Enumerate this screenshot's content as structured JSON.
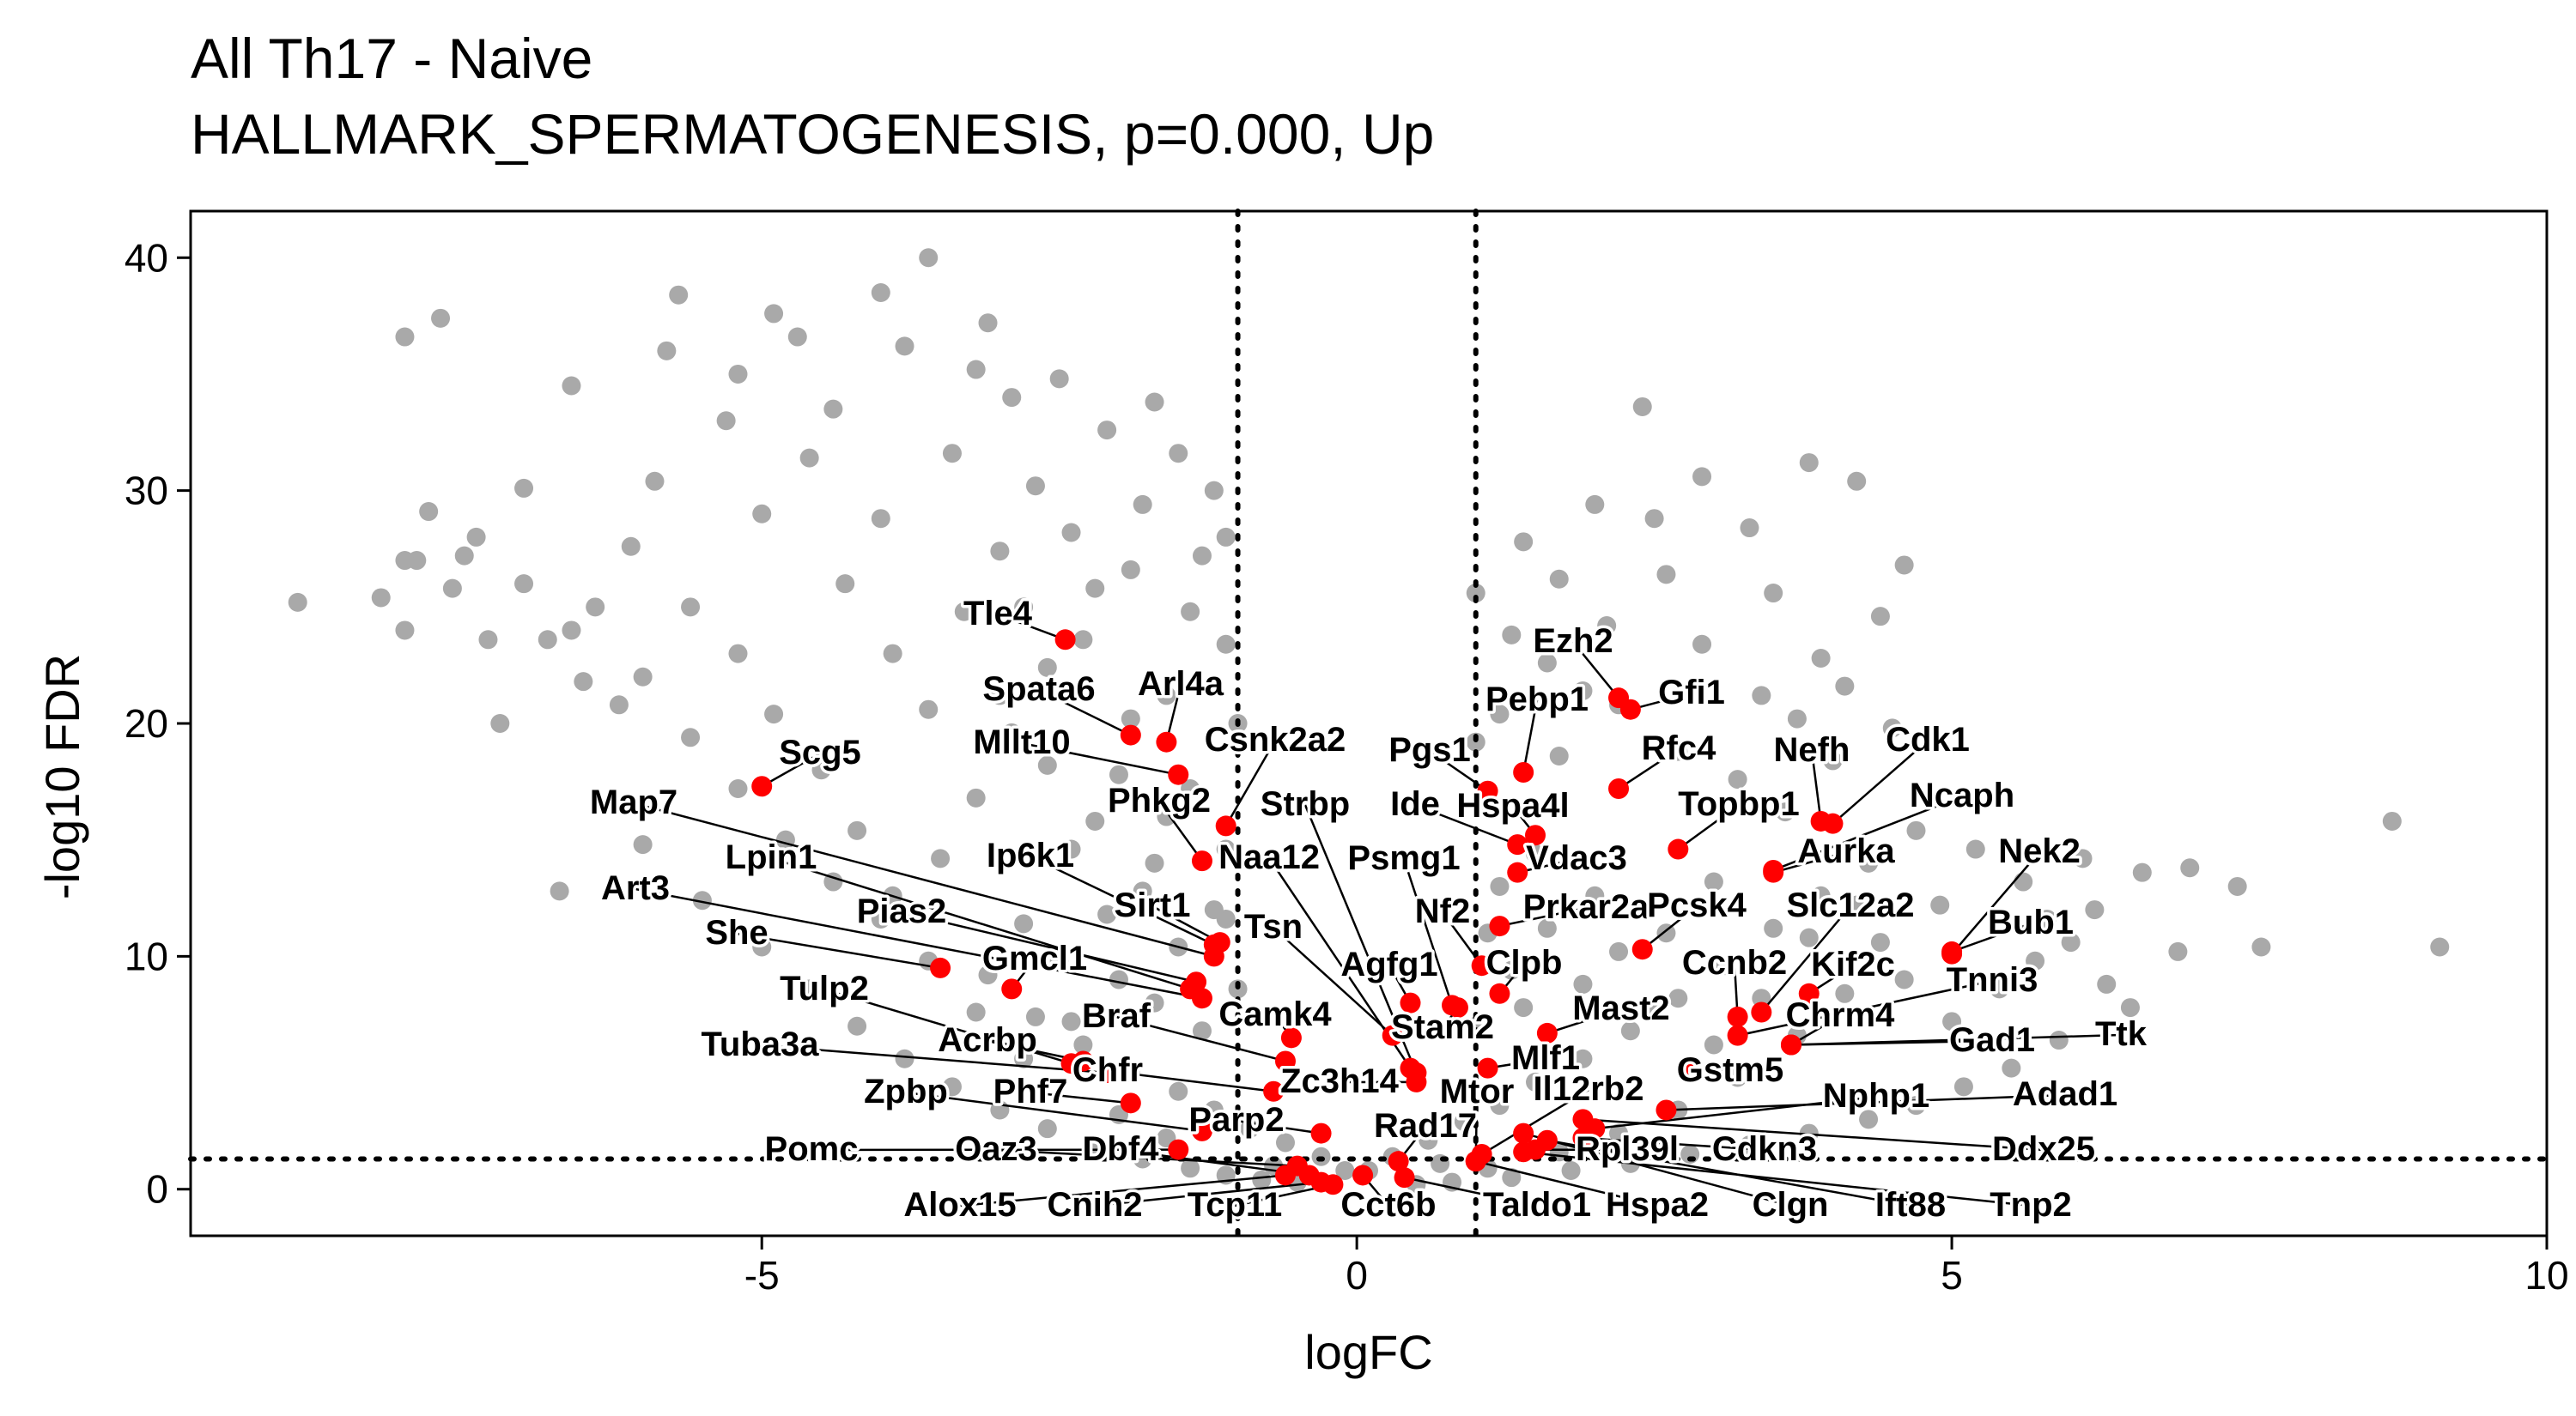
{
  "chart_data": {
    "type": "scatter",
    "title_lines": [
      "All Th17 - Naive",
      "HALLMARK_SPERMATOGENESIS, p=0.000, Up"
    ],
    "xlabel": "logFC",
    "ylabel": "-log10 FDR",
    "xlim": [
      -9.8,
      10
    ],
    "ylim": [
      -2,
      42
    ],
    "x_ticks": [
      -5,
      0,
      5,
      10
    ],
    "y_ticks": [
      0,
      10,
      20,
      30,
      40
    ],
    "grid": false,
    "background_color": "#a9a9a9",
    "highlight_color": "#ff0000",
    "thresholds": {
      "logFC": [
        -1,
        1
      ],
      "neg_log10_fdr": 1.3
    },
    "background_points": [
      [
        -8.9,
        25.2
      ],
      [
        -8.0,
        36.6
      ],
      [
        -7.7,
        37.4
      ],
      [
        -7.9,
        27.0
      ],
      [
        -7.4,
        28.0
      ],
      [
        -7.0,
        30.1
      ],
      [
        -6.6,
        34.5
      ],
      [
        -6.7,
        12.8
      ],
      [
        -6.4,
        25.0
      ],
      [
        -6.0,
        22.0
      ],
      [
        -5.9,
        30.4
      ],
      [
        -5.7,
        38.4
      ],
      [
        -5.2,
        35.0
      ],
      [
        -5.0,
        29.0
      ],
      [
        -4.7,
        36.6
      ],
      [
        -4.4,
        33.5
      ],
      [
        -4.0,
        38.5
      ],
      [
        -3.6,
        40.0
      ],
      [
        -3.2,
        35.2
      ],
      [
        -2.9,
        34.0
      ],
      [
        -7.8,
        29.1
      ],
      [
        -7.5,
        27.2
      ],
      [
        -8.0,
        27.0
      ],
      [
        -8.2,
        25.4
      ],
      [
        -6.8,
        23.6
      ],
      [
        -6.5,
        21.8
      ],
      [
        -6.1,
        27.6
      ],
      [
        -5.6,
        25.0
      ],
      [
        -5.2,
        23.0
      ],
      [
        -4.9,
        20.4
      ],
      [
        -4.5,
        18.0
      ],
      [
        -4.2,
        15.4
      ],
      [
        -3.9,
        12.6
      ],
      [
        -3.5,
        14.2
      ],
      [
        -3.2,
        16.8
      ],
      [
        -2.9,
        19.6
      ],
      [
        -2.6,
        22.4
      ],
      [
        -2.2,
        25.8
      ],
      [
        -1.8,
        29.4
      ],
      [
        -1.5,
        31.6
      ],
      [
        -1.3,
        27.2
      ],
      [
        -1.1,
        23.4
      ],
      [
        -1.6,
        21.2
      ],
      [
        -2.0,
        17.8
      ],
      [
        -2.4,
        14.6
      ],
      [
        -2.8,
        11.4
      ],
      [
        -3.1,
        9.2
      ],
      [
        -2.7,
        7.4
      ],
      [
        -2.3,
        6.2
      ],
      [
        -1.9,
        5.0
      ],
      [
        -1.5,
        4.2
      ],
      [
        -1.2,
        3.4
      ],
      [
        -0.9,
        2.6
      ],
      [
        -0.6,
        2.0
      ],
      [
        -0.3,
        1.4
      ],
      [
        -0.1,
        0.8
      ],
      [
        0.1,
        0.8
      ],
      [
        0.3,
        1.4
      ],
      [
        0.6,
        2.1
      ],
      [
        0.9,
        2.9
      ],
      [
        1.2,
        3.6
      ],
      [
        1.5,
        4.6
      ],
      [
        1.9,
        5.6
      ],
      [
        2.3,
        6.8
      ],
      [
        2.7,
        8.2
      ],
      [
        3.1,
        9.6
      ],
      [
        3.5,
        11.2
      ],
      [
        3.9,
        12.6
      ],
      [
        4.3,
        14.0
      ],
      [
        4.7,
        15.4
      ],
      [
        5.2,
        14.6
      ],
      [
        5.6,
        13.2
      ],
      [
        6.1,
        14.2
      ],
      [
        6.6,
        13.6
      ],
      [
        7.0,
        13.8
      ],
      [
        7.4,
        13.0
      ],
      [
        6.9,
        10.2
      ],
      [
        7.6,
        10.4
      ],
      [
        8.7,
        15.8
      ],
      [
        9.1,
        10.4
      ],
      [
        5.7,
        9.8
      ],
      [
        6.3,
        8.8
      ],
      [
        6.5,
        7.8
      ],
      [
        5.9,
        6.4
      ],
      [
        5.5,
        5.2
      ],
      [
        5.1,
        4.4
      ],
      [
        4.7,
        3.6
      ],
      [
        4.3,
        3.0
      ],
      [
        3.8,
        2.4
      ],
      [
        3.3,
        1.9
      ],
      [
        2.8,
        1.5
      ],
      [
        2.3,
        1.1
      ],
      [
        1.8,
        0.8
      ],
      [
        1.3,
        0.5
      ],
      [
        1.0,
        25.6
      ],
      [
        1.4,
        27.8
      ],
      [
        1.7,
        26.2
      ],
      [
        2.0,
        29.4
      ],
      [
        2.5,
        28.8
      ],
      [
        2.9,
        30.6
      ],
      [
        3.3,
        28.4
      ],
      [
        3.8,
        31.2
      ],
      [
        4.2,
        30.4
      ],
      [
        4.6,
        26.8
      ],
      [
        4.4,
        24.6
      ],
      [
        3.9,
        22.8
      ],
      [
        3.4,
        21.2
      ],
      [
        2.9,
        23.4
      ],
      [
        2.4,
        33.6
      ],
      [
        2.1,
        24.2
      ],
      [
        1.6,
        22.6
      ],
      [
        1.2,
        20.4
      ],
      [
        1.1,
        16.4
      ],
      [
        1.5,
        14.4
      ],
      [
        2.0,
        12.6
      ],
      [
        2.6,
        11.0
      ],
      [
        3.0,
        13.2
      ],
      [
        3.6,
        16.2
      ],
      [
        4.0,
        18.4
      ],
      [
        4.5,
        19.8
      ],
      [
        5.1,
        16.8
      ],
      [
        4.9,
        12.2
      ],
      [
        4.4,
        10.6
      ],
      [
        4.1,
        8.4
      ],
      [
        3.7,
        6.6
      ],
      [
        3.2,
        4.8
      ],
      [
        2.7,
        3.4
      ],
      [
        2.2,
        2.4
      ],
      [
        1.7,
        1.6
      ],
      [
        1.1,
        0.9
      ],
      [
        0.8,
        0.3
      ],
      [
        0.5,
        0.2
      ],
      [
        -0.5,
        0.3
      ],
      [
        -0.8,
        0.4
      ],
      [
        -1.1,
        0.6
      ],
      [
        -1.4,
        0.9
      ],
      [
        -1.8,
        1.3
      ],
      [
        -2.2,
        1.9
      ],
      [
        -2.6,
        2.6
      ],
      [
        -3.0,
        3.4
      ],
      [
        -3.4,
        4.4
      ],
      [
        -3.8,
        5.6
      ],
      [
        -4.2,
        7.0
      ],
      [
        -4.6,
        8.6
      ],
      [
        -5.0,
        10.4
      ],
      [
        -5.5,
        12.4
      ],
      [
        -6.0,
        14.8
      ],
      [
        -4.3,
        26.0
      ],
      [
        -3.9,
        23.0
      ],
      [
        -3.6,
        20.6
      ],
      [
        -3.3,
        24.8
      ],
      [
        -3.0,
        27.4
      ],
      [
        -2.7,
        30.2
      ],
      [
        -2.4,
        28.2
      ],
      [
        -2.1,
        32.6
      ],
      [
        -1.7,
        33.8
      ],
      [
        -3.4,
        31.6
      ],
      [
        -4.0,
        28.8
      ],
      [
        -4.6,
        31.4
      ],
      [
        -5.3,
        33.0
      ],
      [
        -5.8,
        36.0
      ],
      [
        -4.9,
        37.6
      ],
      [
        -3.8,
        36.2
      ],
      [
        -3.1,
        37.2
      ],
      [
        -2.5,
        34.8
      ],
      [
        -1.9,
        26.6
      ],
      [
        -1.2,
        30.0
      ],
      [
        -1.0,
        20.0
      ],
      [
        -1.4,
        17.2
      ],
      [
        -1.7,
        14.0
      ],
      [
        -2.1,
        11.8
      ],
      [
        -2.5,
        9.8
      ],
      [
        -1.1,
        14.6
      ],
      [
        -1.0,
        8.6
      ],
      [
        -1.3,
        6.8
      ],
      [
        -1.7,
        8.0
      ],
      [
        -2.0,
        3.2
      ],
      [
        -1.6,
        2.2
      ],
      [
        -0.7,
        1.0
      ],
      [
        0.7,
        1.1
      ],
      [
        1.0,
        7.0
      ],
      [
        1.3,
        9.4
      ],
      [
        1.6,
        11.2
      ],
      [
        1.9,
        8.8
      ],
      [
        2.2,
        10.2
      ],
      [
        2.5,
        7.6
      ],
      [
        3.0,
        6.2
      ],
      [
        3.4,
        8.2
      ],
      [
        3.8,
        10.8
      ],
      [
        4.2,
        12.2
      ],
      [
        4.6,
        9.0
      ],
      [
        5.0,
        7.2
      ],
      [
        5.4,
        8.6
      ],
      [
        5.8,
        11.6
      ],
      [
        6.2,
        12.0
      ],
      [
        6.0,
        10.6
      ],
      [
        1.2,
        13.0
      ],
      [
        1.7,
        18.6
      ],
      [
        2.2,
        20.8
      ],
      [
        2.7,
        18.8
      ],
      [
        3.2,
        17.6
      ],
      [
        3.7,
        20.2
      ],
      [
        4.1,
        21.6
      ],
      [
        3.5,
        25.6
      ],
      [
        2.6,
        26.4
      ],
      [
        1.9,
        21.4
      ],
      [
        1.3,
        23.8
      ],
      [
        1.0,
        19.2
      ],
      [
        1.1,
        11.0
      ],
      [
        1.4,
        7.8
      ],
      [
        -1.1,
        11.6
      ],
      [
        -1.2,
        12.0
      ],
      [
        -1.5,
        10.4
      ],
      [
        -1.8,
        12.8
      ],
      [
        -2.2,
        15.8
      ],
      [
        -2.6,
        18.2
      ],
      [
        -3.0,
        21.2
      ],
      [
        -2.8,
        25.0
      ],
      [
        -2.3,
        23.6
      ],
      [
        -1.9,
        20.2
      ],
      [
        -1.4,
        24.8
      ],
      [
        -1.1,
        28.0
      ],
      [
        -1.6,
        16.0
      ],
      [
        -2.0,
        9.0
      ],
      [
        -2.4,
        7.2
      ],
      [
        -2.8,
        5.6
      ],
      [
        -3.2,
        7.6
      ],
      [
        -3.6,
        9.8
      ],
      [
        -4.0,
        11.6
      ],
      [
        -4.4,
        13.2
      ],
      [
        -4.8,
        15.0
      ],
      [
        -5.2,
        17.2
      ],
      [
        -5.6,
        19.4
      ],
      [
        -6.2,
        20.8
      ],
      [
        -6.6,
        24.0
      ],
      [
        -7.0,
        26.0
      ],
      [
        -7.3,
        23.6
      ],
      [
        -7.6,
        25.8
      ],
      [
        -8.0,
        24.0
      ],
      [
        -7.2,
        20.0
      ]
    ],
    "highlight_points": [
      {
        "label": "Tle4",
        "x": -2.45,
        "y": 23.6
      },
      {
        "label": "Spata6",
        "x": -1.9,
        "y": 19.5
      },
      {
        "label": "Arl4a",
        "x": -1.6,
        "y": 19.2
      },
      {
        "label": "Mllt10",
        "x": -1.5,
        "y": 17.8
      },
      {
        "label": "Scg5",
        "x": -5.0,
        "y": 17.3
      },
      {
        "label": "Csnk2a2",
        "x": -1.1,
        "y": 15.6
      },
      {
        "label": "Phkg2",
        "x": -1.3,
        "y": 14.1
      },
      {
        "label": "Map7",
        "x": -1.2,
        "y": 10.0
      },
      {
        "label": "Lpin1",
        "x": -1.4,
        "y": 8.6
      },
      {
        "label": "Ip6k1",
        "x": -1.2,
        "y": 10.5
      },
      {
        "label": "Art3",
        "x": -1.3,
        "y": 8.2
      },
      {
        "label": "Sirt1",
        "x": -1.15,
        "y": 10.6
      },
      {
        "label": "She",
        "x": -3.5,
        "y": 9.5
      },
      {
        "label": "Pias2",
        "x": -1.35,
        "y": 8.9
      },
      {
        "label": "Gmcl1",
        "x": -2.9,
        "y": 8.6
      },
      {
        "label": "Tulp2",
        "x": -2.4,
        "y": 5.4
      },
      {
        "label": "Acrbp",
        "x": -2.3,
        "y": 5.5
      },
      {
        "label": "Braf",
        "x": -0.6,
        "y": 5.5
      },
      {
        "label": "Camk4",
        "x": -0.55,
        "y": 6.5
      },
      {
        "label": "Tuba3a",
        "x": -2.1,
        "y": 5.0
      },
      {
        "label": "Chfr",
        "x": -0.7,
        "y": 4.2
      },
      {
        "label": "Zpbp",
        "x": -1.3,
        "y": 2.5
      },
      {
        "label": "Phf7",
        "x": -1.9,
        "y": 3.7
      },
      {
        "label": "Parp2",
        "x": -0.3,
        "y": 2.4
      },
      {
        "label": "Pomc",
        "x": -1.5,
        "y": 1.7
      },
      {
        "label": "Oaz3",
        "x": -0.5,
        "y": 1.0
      },
      {
        "label": "Dbf4",
        "x": -0.4,
        "y": 0.6
      },
      {
        "label": "Alox15",
        "x": -0.6,
        "y": 0.6
      },
      {
        "label": "Cnih2",
        "x": -0.3,
        "y": 0.3
      },
      {
        "label": "Tcp11",
        "x": -0.2,
        "y": 0.2
      },
      {
        "label": "Cct6b",
        "x": 0.05,
        "y": 0.6
      },
      {
        "label": "Taldo1",
        "x": 0.4,
        "y": 0.5
      },
      {
        "label": "Strbp",
        "x": 0.5,
        "y": 5.0
      },
      {
        "label": "Tsn",
        "x": 0.3,
        "y": 6.6
      },
      {
        "label": "Naa12",
        "x": 0.45,
        "y": 5.2
      },
      {
        "label": "Psmg1",
        "x": 0.8,
        "y": 7.9
      },
      {
        "label": "Agfg1",
        "x": 0.45,
        "y": 8.0
      },
      {
        "label": "Zc3h14",
        "x": 0.5,
        "y": 4.6
      },
      {
        "label": "Rad17",
        "x": 0.35,
        "y": 1.2
      },
      {
        "label": "Pgs1",
        "x": 1.1,
        "y": 17.1
      },
      {
        "label": "Ide",
        "x": 1.35,
        "y": 14.8
      },
      {
        "label": "Pebp1",
        "x": 1.4,
        "y": 17.9
      },
      {
        "label": "Ezh2",
        "x": 2.2,
        "y": 21.1
      },
      {
        "label": "Gfi1",
        "x": 2.3,
        "y": 20.6
      },
      {
        "label": "Rfc4",
        "x": 2.2,
        "y": 17.2
      },
      {
        "label": "Hspa4l",
        "x": 1.5,
        "y": 15.2
      },
      {
        "label": "Vdac3",
        "x": 1.35,
        "y": 13.6
      },
      {
        "label": "Topbp1",
        "x": 2.7,
        "y": 14.6
      },
      {
        "label": "Nf2",
        "x": 1.05,
        "y": 9.6
      },
      {
        "label": "Prkar2a",
        "x": 1.2,
        "y": 11.3
      },
      {
        "label": "Clpb",
        "x": 1.2,
        "y": 8.4
      },
      {
        "label": "Stam2",
        "x": 0.85,
        "y": 7.8
      },
      {
        "label": "Pcsk4",
        "x": 2.4,
        "y": 10.3
      },
      {
        "label": "Ccnb2",
        "x": 3.2,
        "y": 7.4
      },
      {
        "label": "Mast2",
        "x": 1.6,
        "y": 6.7
      },
      {
        "label": "Mlf1",
        "x": 1.1,
        "y": 5.2
      },
      {
        "label": "Mtor",
        "x": 1.0,
        "y": 1.2
      },
      {
        "label": "Il12rb2",
        "x": 1.05,
        "y": 1.5
      },
      {
        "label": "Gstm5",
        "x": 2.8,
        "y": 5.1
      },
      {
        "label": "Nefh",
        "x": 3.9,
        "y": 15.8
      },
      {
        "label": "Cdk1",
        "x": 4.0,
        "y": 15.7
      },
      {
        "label": "Ncaph",
        "x": 3.5,
        "y": 13.7
      },
      {
        "label": "Aurka",
        "x": 3.5,
        "y": 13.6
      },
      {
        "label": "Nek2",
        "x": 5.0,
        "y": 10.1
      },
      {
        "label": "Slc12a2",
        "x": 3.4,
        "y": 7.6
      },
      {
        "label": "Bub1",
        "x": 5.0,
        "y": 10.2
      },
      {
        "label": "Kif2c",
        "x": 3.8,
        "y": 8.4
      },
      {
        "label": "Tnni3",
        "x": 3.2,
        "y": 6.6
      },
      {
        "label": "Chrm4",
        "x": 3.65,
        "y": 6.2
      },
      {
        "label": "Gad1",
        "x": 3.65,
        "y": 6.2
      },
      {
        "label": "Ttk",
        "x": 3.65,
        "y": 6.2
      },
      {
        "label": "Nphp1",
        "x": 2.0,
        "y": 2.6
      },
      {
        "label": "Adad1",
        "x": 2.6,
        "y": 3.4
      },
      {
        "label": "Rpl39l",
        "x": 1.5,
        "y": 1.7
      },
      {
        "label": "Cdkn3",
        "x": 1.9,
        "y": 2.2
      },
      {
        "label": "Ddx25",
        "x": 1.9,
        "y": 3.0
      },
      {
        "label": "Hspa2",
        "x": 1.0,
        "y": 1.2
      },
      {
        "label": "Clgn",
        "x": 1.4,
        "y": 2.4
      },
      {
        "label": "Ift88",
        "x": 1.6,
        "y": 2.1
      },
      {
        "label": "Tnp2",
        "x": 1.4,
        "y": 1.6
      }
    ]
  }
}
